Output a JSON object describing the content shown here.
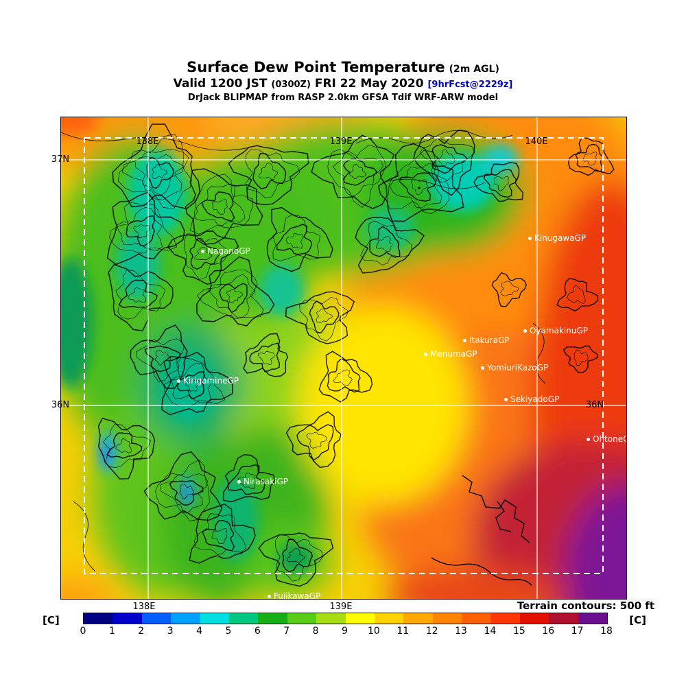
{
  "header": {
    "title": "Surface Dew Point Temperature",
    "title_suffix": "(2m AGL)",
    "valid_prefix": "Valid 1200 JST",
    "valid_zulu": "(0300Z)",
    "valid_date": "FRI 22 May 2020",
    "forecast_tag": "[9hrFcst@2229z]",
    "model_line": "DrJack BLIPMAP from RASP 2.0km GFSA Tdif WRF-ARW model"
  },
  "map": {
    "grid_labels": {
      "top": [
        "138E",
        "139E",
        "140E"
      ],
      "left": [
        "37N",
        "36N"
      ],
      "right": [
        "36N"
      ],
      "bottom": [
        "138E",
        "139E"
      ]
    },
    "stations": [
      {
        "name": "NaganoGP"
      },
      {
        "name": "KinugawaGP"
      },
      {
        "name": "OyamakinuGP"
      },
      {
        "name": "ItakuraGP"
      },
      {
        "name": "MenumaGP"
      },
      {
        "name": "YomiuriKazoGP"
      },
      {
        "name": "SekiyadoGP"
      },
      {
        "name": "OhtoneGP"
      },
      {
        "name": "KirigamineGP"
      },
      {
        "name": "NirasakiGP"
      },
      {
        "name": "FujikawaGP"
      }
    ]
  },
  "footer": {
    "terrain_note": "Terrain contours: 500 ft",
    "units_left": "[C]",
    "units_right": "[C]"
  },
  "chart_data": {
    "type": "heatmap",
    "title": "Surface Dew Point Temperature (2m AGL)",
    "valid": "1200 JST (0300Z) FRI 22 May 2020",
    "forecast": "9hrFcst@2229z",
    "model": "DrJack BLIPMAP from RASP 2.0km GFSA Tdif WRF-ARW model",
    "units": "C",
    "terrain_contour_interval_ft": 500,
    "lon_gridlines": [
      "138E",
      "139E",
      "140E"
    ],
    "lat_gridlines": [
      "37N",
      "36N"
    ],
    "colorbar": {
      "orientation": "horizontal",
      "ticks": [
        0,
        1,
        2,
        3,
        4,
        5,
        6,
        7,
        8,
        9,
        10,
        11,
        12,
        13,
        14,
        15,
        16,
        17,
        18
      ],
      "colors": [
        "#000080",
        "#0000cd",
        "#0060ff",
        "#00a2ff",
        "#00e0e0",
        "#00c880",
        "#16b016",
        "#58cc16",
        "#a8dc14",
        "#ffff00",
        "#ffd300",
        "#ffa800",
        "#ff8400",
        "#ff6000",
        "#ff3800",
        "#e31000",
        "#b01030",
        "#6a0d8e"
      ]
    },
    "value_summary": {
      "west_mountains_C": "4-8",
      "central_C": "9-11",
      "eastern_plain_C": "12-15",
      "southeast_corner_C": "16-18",
      "cold_spots_C": "1-3"
    }
  }
}
